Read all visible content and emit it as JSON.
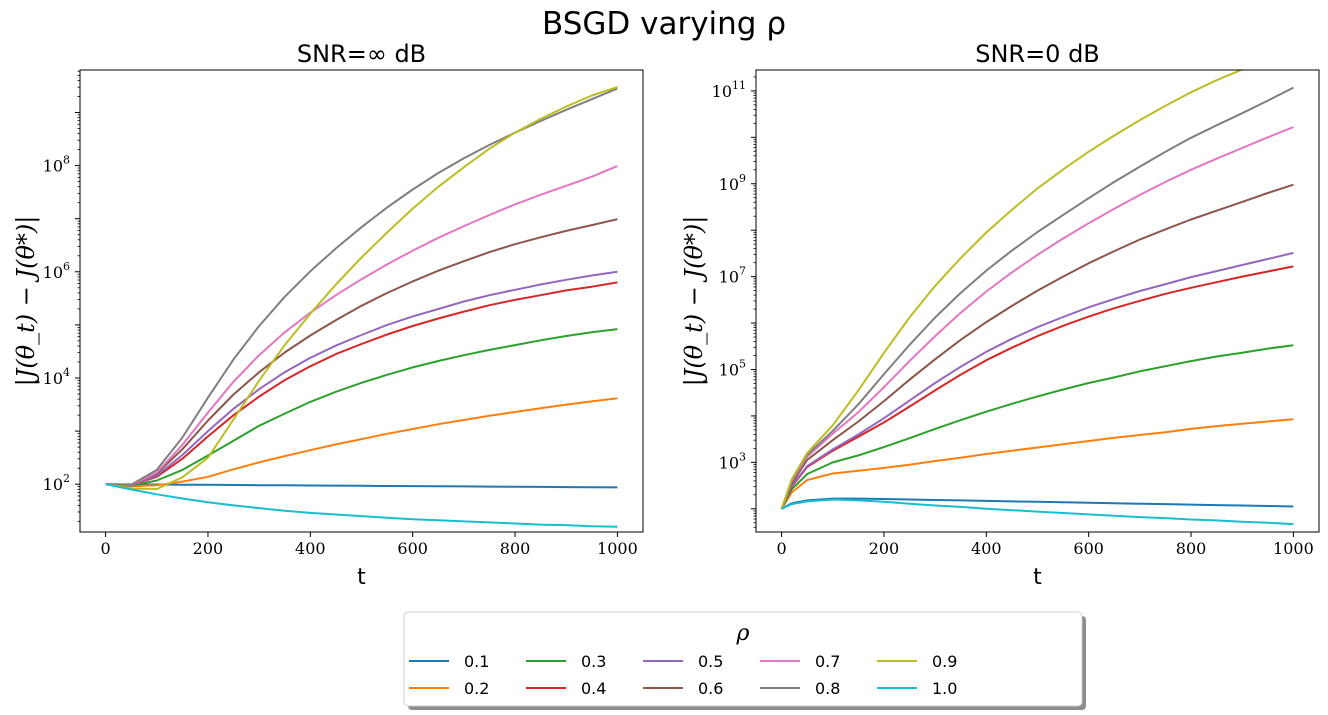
{
  "figure": {
    "title": "BSGD varying ρ"
  },
  "chart_data": [
    {
      "type": "line",
      "title": "SNR=∞ dB",
      "xlabel": "t",
      "ylabel": "|J(θ_t) − J(θ*)|",
      "xlim": [
        -50,
        1050
      ],
      "ylim_log10": [
        1.1,
        9.8
      ],
      "yscale": "log",
      "xticks": [
        0,
        200,
        400,
        600,
        800,
        1000
      ],
      "yticks": [
        {
          "exp": 2,
          "label": "10",
          "sup": "2"
        },
        {
          "exp": 4,
          "label": "10",
          "sup": "4"
        },
        {
          "exp": 6,
          "label": "10",
          "sup": "6"
        },
        {
          "exp": 8,
          "label": "10",
          "sup": "8"
        }
      ],
      "grid": false,
      "x": [
        0,
        50,
        100,
        150,
        200,
        250,
        300,
        350,
        400,
        450,
        500,
        550,
        600,
        650,
        700,
        750,
        800,
        850,
        900,
        950,
        1000
      ],
      "series": [
        {
          "name": "0.1",
          "color": "#1f77b4",
          "log10_values": [
            2.0,
            1.997,
            1.994,
            1.991,
            1.988,
            1.985,
            1.982,
            1.979,
            1.976,
            1.973,
            1.97,
            1.967,
            1.964,
            1.961,
            1.958,
            1.955,
            1.952,
            1.949,
            1.946,
            1.943,
            1.94
          ]
        },
        {
          "name": "0.2",
          "color": "#ff7f0e",
          "log10_values": [
            2.0,
            1.96,
            1.98,
            2.05,
            2.14,
            2.28,
            2.41,
            2.53,
            2.64,
            2.75,
            2.85,
            2.95,
            3.04,
            3.13,
            3.21,
            3.29,
            3.36,
            3.43,
            3.5,
            3.56,
            3.62
          ]
        },
        {
          "name": "0.3",
          "color": "#2ca02c",
          "log10_values": [
            2.0,
            1.97,
            2.07,
            2.27,
            2.54,
            2.82,
            3.1,
            3.33,
            3.55,
            3.74,
            3.91,
            4.06,
            4.2,
            4.32,
            4.43,
            4.53,
            4.62,
            4.71,
            4.79,
            4.86,
            4.92
          ]
        },
        {
          "name": "0.4",
          "color": "#d62728",
          "log10_values": [
            2.0,
            1.98,
            2.14,
            2.48,
            2.9,
            3.3,
            3.65,
            3.96,
            4.22,
            4.45,
            4.64,
            4.82,
            4.98,
            5.12,
            5.25,
            5.37,
            5.47,
            5.56,
            5.65,
            5.72,
            5.8
          ]
        },
        {
          "name": "0.5",
          "color": "#9467bd",
          "log10_values": [
            2.0,
            1.98,
            2.16,
            2.55,
            3.0,
            3.42,
            3.79,
            4.11,
            4.38,
            4.61,
            4.81,
            5.0,
            5.16,
            5.3,
            5.44,
            5.56,
            5.66,
            5.76,
            5.85,
            5.93,
            6.0
          ]
        },
        {
          "name": "0.6",
          "color": "#8c564b",
          "log10_values": [
            2.0,
            1.98,
            2.2,
            2.66,
            3.2,
            3.69,
            4.11,
            4.48,
            4.8,
            5.09,
            5.36,
            5.6,
            5.82,
            6.02,
            6.2,
            6.37,
            6.52,
            6.65,
            6.77,
            6.88,
            6.99
          ]
        },
        {
          "name": "0.7",
          "color": "#e377c2",
          "log10_values": [
            2.0,
            1.98,
            2.22,
            2.74,
            3.35,
            3.93,
            4.43,
            4.86,
            5.23,
            5.56,
            5.86,
            6.14,
            6.4,
            6.64,
            6.86,
            7.07,
            7.27,
            7.45,
            7.62,
            7.79,
            7.99
          ]
        },
        {
          "name": "0.8",
          "color": "#7f7f7f",
          "log10_values": [
            2.0,
            1.99,
            2.27,
            2.88,
            3.63,
            4.35,
            4.98,
            5.53,
            6.01,
            6.44,
            6.84,
            7.21,
            7.55,
            7.86,
            8.14,
            8.39,
            8.62,
            8.84,
            9.05,
            9.25,
            9.45
          ]
        },
        {
          "name": "0.9",
          "color": "#bcbd22",
          "log10_values": [
            2.0,
            1.92,
            1.91,
            2.13,
            2.5,
            3.22,
            3.95,
            4.62,
            5.21,
            5.76,
            6.27,
            6.74,
            7.19,
            7.6,
            7.97,
            8.32,
            8.62,
            8.88,
            9.11,
            9.32,
            9.48
          ]
        },
        {
          "name": "1.0",
          "color": "#17becf",
          "log10_values": [
            2.0,
            1.9,
            1.81,
            1.73,
            1.66,
            1.6,
            1.55,
            1.5,
            1.46,
            1.43,
            1.4,
            1.37,
            1.34,
            1.32,
            1.3,
            1.28,
            1.26,
            1.24,
            1.23,
            1.21,
            1.2
          ]
        }
      ]
    },
    {
      "type": "line",
      "title": "SNR=0 dB",
      "xlabel": "t",
      "ylabel": "|J(θ_t) − J(θ*)|",
      "xlim": [
        -50,
        1050
      ],
      "ylim_log10": [
        1.5,
        11.45
      ],
      "yscale": "log",
      "xticks": [
        0,
        200,
        400,
        600,
        800,
        1000
      ],
      "yticks": [
        {
          "exp": 3,
          "label": "10",
          "sup": "3"
        },
        {
          "exp": 5,
          "label": "10",
          "sup": "5"
        },
        {
          "exp": 7,
          "label": "10",
          "sup": "7"
        },
        {
          "exp": 9,
          "label": "10",
          "sup": "9"
        },
        {
          "exp": 11,
          "label": "10",
          "sup": "11"
        }
      ],
      "grid": false,
      "x": [
        0,
        20,
        50,
        100,
        150,
        200,
        250,
        300,
        350,
        400,
        450,
        500,
        550,
        600,
        650,
        700,
        750,
        800,
        850,
        900,
        950,
        1000
      ],
      "series": [
        {
          "name": "0.1",
          "color": "#1f77b4",
          "log10_values": [
            2.0,
            2.12,
            2.18,
            2.22,
            2.22,
            2.21,
            2.2,
            2.19,
            2.18,
            2.17,
            2.16,
            2.15,
            2.14,
            2.13,
            2.12,
            2.11,
            2.1,
            2.09,
            2.08,
            2.07,
            2.06,
            2.05
          ]
        },
        {
          "name": "0.2",
          "color": "#ff7f0e",
          "log10_values": [
            2.0,
            2.35,
            2.62,
            2.76,
            2.82,
            2.88,
            2.95,
            3.03,
            3.1,
            3.18,
            3.25,
            3.32,
            3.39,
            3.46,
            3.53,
            3.59,
            3.65,
            3.72,
            3.78,
            3.83,
            3.88,
            3.93
          ]
        },
        {
          "name": "0.3",
          "color": "#2ca02c",
          "log10_values": [
            2.0,
            2.42,
            2.75,
            3.0,
            3.15,
            3.33,
            3.52,
            3.72,
            3.91,
            4.09,
            4.26,
            4.42,
            4.57,
            4.71,
            4.83,
            4.96,
            5.07,
            5.18,
            5.28,
            5.36,
            5.45,
            5.52
          ]
        },
        {
          "name": "0.4",
          "color": "#d62728",
          "log10_values": [
            2.0,
            2.48,
            2.9,
            3.25,
            3.55,
            3.86,
            4.2,
            4.55,
            4.89,
            5.2,
            5.47,
            5.72,
            5.94,
            6.14,
            6.32,
            6.48,
            6.63,
            6.76,
            6.88,
            7.0,
            7.11,
            7.22
          ]
        },
        {
          "name": "0.5",
          "color": "#9467bd",
          "log10_values": [
            2.0,
            2.5,
            2.92,
            3.28,
            3.6,
            3.95,
            4.33,
            4.71,
            5.06,
            5.38,
            5.66,
            5.91,
            6.13,
            6.34,
            6.52,
            6.69,
            6.84,
            6.99,
            7.12,
            7.25,
            7.38,
            7.51
          ]
        },
        {
          "name": "0.6",
          "color": "#8c564b",
          "log10_values": [
            2.0,
            2.55,
            3.05,
            3.48,
            3.88,
            4.32,
            4.78,
            5.22,
            5.64,
            6.02,
            6.37,
            6.7,
            7.0,
            7.29,
            7.55,
            7.8,
            8.02,
            8.23,
            8.42,
            8.61,
            8.8,
            8.98
          ]
        },
        {
          "name": "0.7",
          "color": "#e377c2",
          "log10_values": [
            2.0,
            2.6,
            3.12,
            3.62,
            4.08,
            4.62,
            5.18,
            5.72,
            6.22,
            6.68,
            7.09,
            7.47,
            7.82,
            8.15,
            8.46,
            8.76,
            9.04,
            9.3,
            9.54,
            9.77,
            10.0,
            10.22
          ]
        },
        {
          "name": "0.8",
          "color": "#7f7f7f",
          "log10_values": [
            2.0,
            2.62,
            3.16,
            3.68,
            4.25,
            4.9,
            5.53,
            6.12,
            6.65,
            7.13,
            7.56,
            7.96,
            8.33,
            8.69,
            9.04,
            9.37,
            9.69,
            9.99,
            10.26,
            10.52,
            10.79,
            11.07
          ]
        },
        {
          "name": "0.9",
          "color": "#bcbd22",
          "log10_values": [
            2.0,
            2.64,
            3.2,
            3.8,
            4.55,
            5.36,
            6.12,
            6.8,
            7.4,
            7.95,
            8.44,
            8.9,
            9.31,
            9.69,
            10.04,
            10.37,
            10.68,
            10.97,
            11.23,
            11.46,
            11.71,
            11.99
          ]
        },
        {
          "name": "1.0",
          "color": "#17becf",
          "log10_values": [
            2.0,
            2.1,
            2.16,
            2.2,
            2.18,
            2.15,
            2.11,
            2.07,
            2.04,
            2.0,
            1.97,
            1.94,
            1.91,
            1.88,
            1.85,
            1.82,
            1.8,
            1.77,
            1.75,
            1.72,
            1.7,
            1.67
          ]
        }
      ]
    }
  ],
  "legend": {
    "title": "ρ",
    "placement": "bottom-center",
    "items": [
      {
        "label": "0.1",
        "color": "#1f77b4"
      },
      {
        "label": "0.2",
        "color": "#ff7f0e"
      },
      {
        "label": "0.3",
        "color": "#2ca02c"
      },
      {
        "label": "0.4",
        "color": "#d62728"
      },
      {
        "label": "0.5",
        "color": "#9467bd"
      },
      {
        "label": "0.6",
        "color": "#8c564b"
      },
      {
        "label": "0.7",
        "color": "#e377c2"
      },
      {
        "label": "0.8",
        "color": "#7f7f7f"
      },
      {
        "label": "0.9",
        "color": "#bcbd22"
      },
      {
        "label": "1.0",
        "color": "#17becf"
      }
    ]
  }
}
